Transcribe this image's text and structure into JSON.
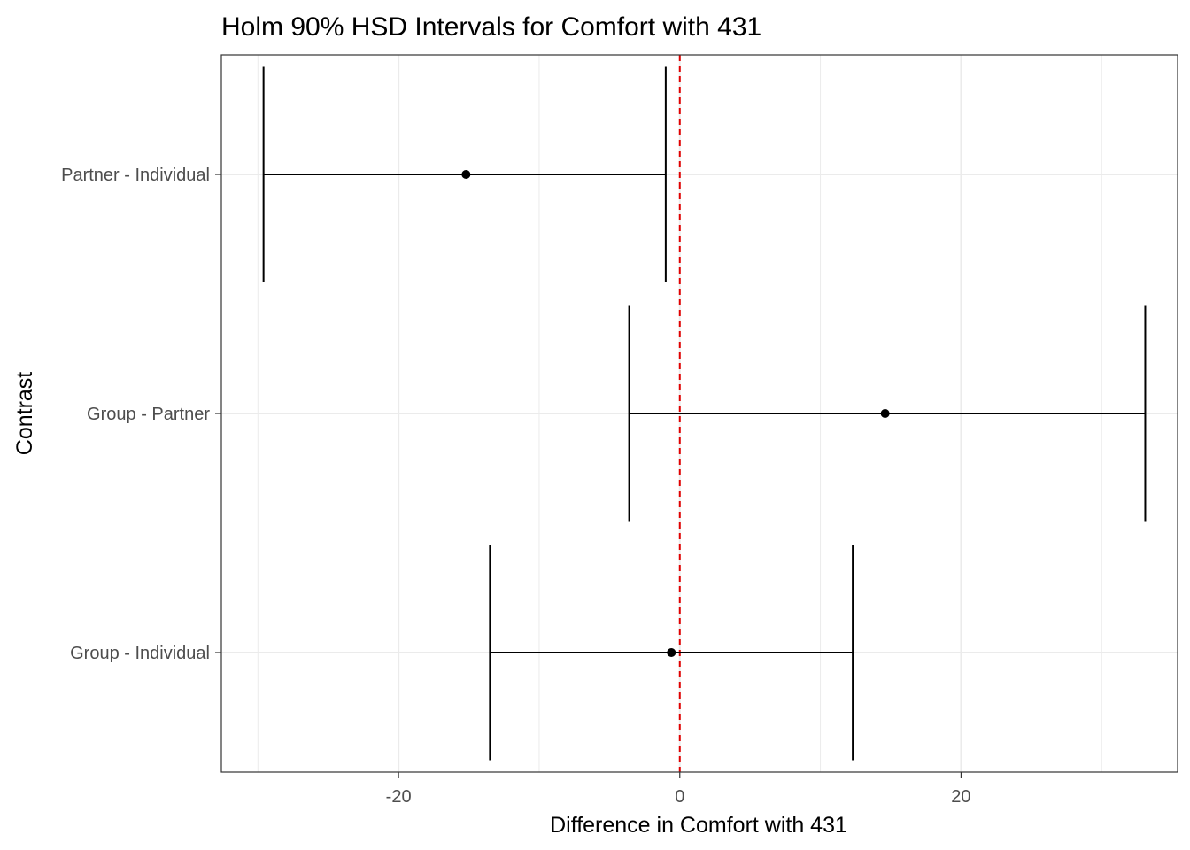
{
  "chart_data": {
    "type": "errorbar",
    "title": "Holm 90% HSD Intervals for Comfort with 431",
    "xlabel": "Difference in Comfort with 431",
    "ylabel": "Contrast",
    "xlim": [
      -32.6,
      35.4
    ],
    "x_ticks": [
      -20,
      0,
      20
    ],
    "x_tick_labels": [
      "-20",
      "0",
      "20"
    ],
    "grid": true,
    "reference_line": {
      "x": 0,
      "color": "#e00000",
      "style": "dashed"
    },
    "categories": [
      "Partner - Individual",
      "Group - Partner",
      "Group - Individual"
    ],
    "estimates": [
      -15.2,
      14.6,
      -0.6
    ],
    "lower": [
      -29.6,
      -3.6,
      -13.5
    ],
    "upper": [
      -1.0,
      33.1,
      12.3
    ],
    "colors": {
      "marks": "#000000",
      "grid": "#ebebeb",
      "panel_border": "#333333"
    }
  }
}
